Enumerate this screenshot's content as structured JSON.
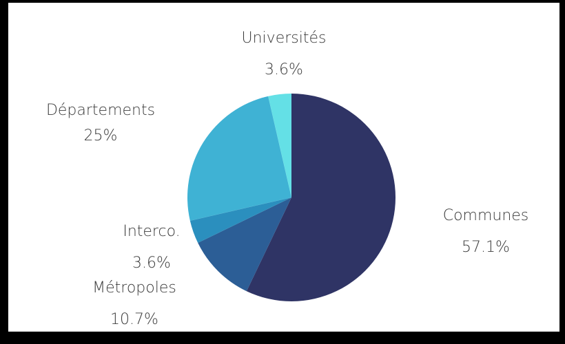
{
  "chart_data": {
    "type": "pie",
    "title": "",
    "start_angle_deg": 0,
    "direction": "clockwise",
    "slices": [
      {
        "label": "Communes",
        "value_label": "57.1%",
        "value": 57.1,
        "color": "#2f3465"
      },
      {
        "label": "Métropoles",
        "value_label": "10.7%",
        "value": 10.7,
        "color": "#2c5e96"
      },
      {
        "label": "Interco.",
        "value_label": "3.6%",
        "value": 3.6,
        "color": "#2b8fbe"
      },
      {
        "label": "Départements",
        "value_label": "25%",
        "value": 25.0,
        "color": "#3fb2d4"
      },
      {
        "label": "Universités",
        "value_label": "3.6%",
        "value": 3.6,
        "color": "#64e0e6"
      }
    ]
  }
}
